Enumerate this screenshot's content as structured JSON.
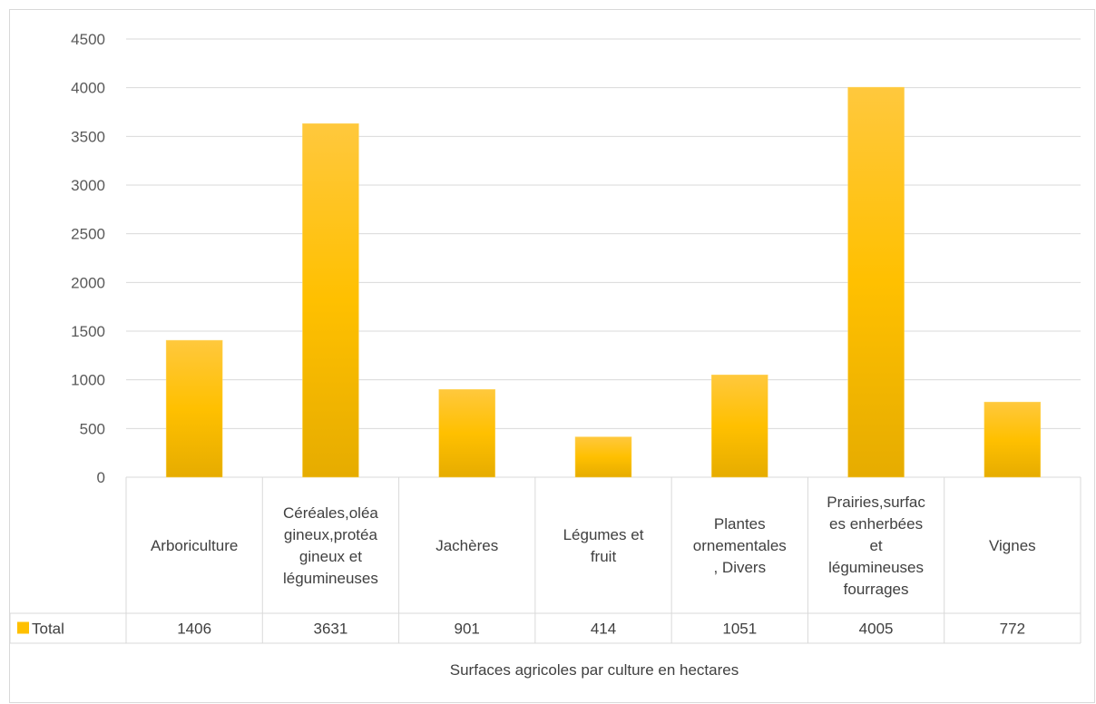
{
  "chart_data": {
    "type": "bar",
    "categories": [
      [
        "Arboriculture"
      ],
      [
        "Céréales,oléa",
        "gineux,protéa",
        "gineux et",
        "légumineuses"
      ],
      [
        "Jachères"
      ],
      [
        "Légumes et",
        "fruit"
      ],
      [
        "Plantes",
        "ornementales",
        ", Divers"
      ],
      [
        "Prairies,surfac",
        "es enherbées",
        "et",
        "légumineuses",
        "fourrages"
      ],
      [
        "Vignes"
      ]
    ],
    "series": [
      {
        "name": "Total",
        "values": [
          1406,
          3631,
          901,
          414,
          1051,
          4005,
          772
        ],
        "color": "#FFC000"
      }
    ],
    "value_labels": [
      "1406",
      "3631",
      "901",
      "414",
      "1051",
      "4005",
      "772"
    ],
    "xlabel": "Surfaces  agricoles par culture en hectares",
    "ylim": [
      0,
      4500
    ],
    "yticks": [
      0,
      500,
      1000,
      1500,
      2000,
      2500,
      3000,
      3500,
      4000,
      4500
    ],
    "grid": true,
    "legend": "data-table",
    "colors": {
      "bar": "#FFC000",
      "bar_dark": "#E6AC00",
      "grid": "#d9d9d9"
    }
  }
}
